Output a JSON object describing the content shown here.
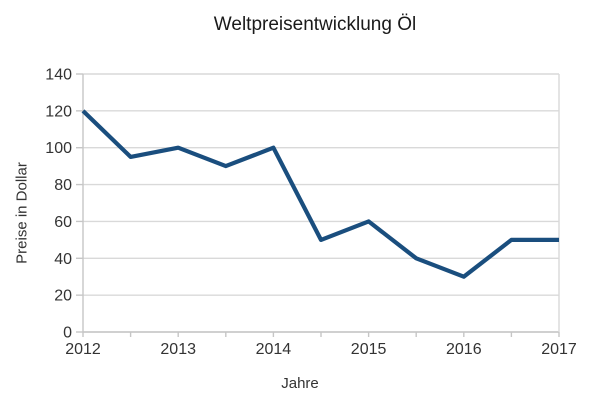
{
  "chart_data": {
    "type": "line",
    "title": "Weltpreisentwicklung Öl",
    "xlabel": "Jahre",
    "ylabel": "Preise in Dollar",
    "x": [
      2012,
      2012.5,
      2013,
      2013.5,
      2014,
      2014.5,
      2015,
      2015.5,
      2016,
      2016.5,
      2017
    ],
    "values": [
      120,
      95,
      100,
      90,
      100,
      50,
      60,
      40,
      30,
      50,
      50
    ],
    "series_name": "Preise in Dollar",
    "xtick_labels": [
      "2012",
      "2013",
      "2014",
      "2015",
      "2016",
      "2017"
    ],
    "xtick_values": [
      2012,
      2013,
      2014,
      2015,
      2016,
      2017
    ],
    "minor_xtick_values": [
      2012,
      2012.5,
      2013,
      2013.5,
      2014,
      2014.5,
      2015,
      2015.5,
      2016,
      2016.5,
      2017
    ],
    "ytick_labels": [
      "0",
      "20",
      "40",
      "60",
      "80",
      "100",
      "120",
      "140"
    ],
    "ytick_values": [
      0,
      20,
      40,
      60,
      80,
      100,
      120,
      140
    ],
    "xlim": [
      2012,
      2017
    ],
    "ylim": [
      0,
      140
    ],
    "grid": "horizontal",
    "legend": "none",
    "colors": {
      "line": "#1A4E7E",
      "gridline": "#d9d9d9",
      "axis": "#c6c6c6",
      "tick_text": "#333333",
      "title_text": "#1a1a1a",
      "background": "#ffffff"
    }
  }
}
